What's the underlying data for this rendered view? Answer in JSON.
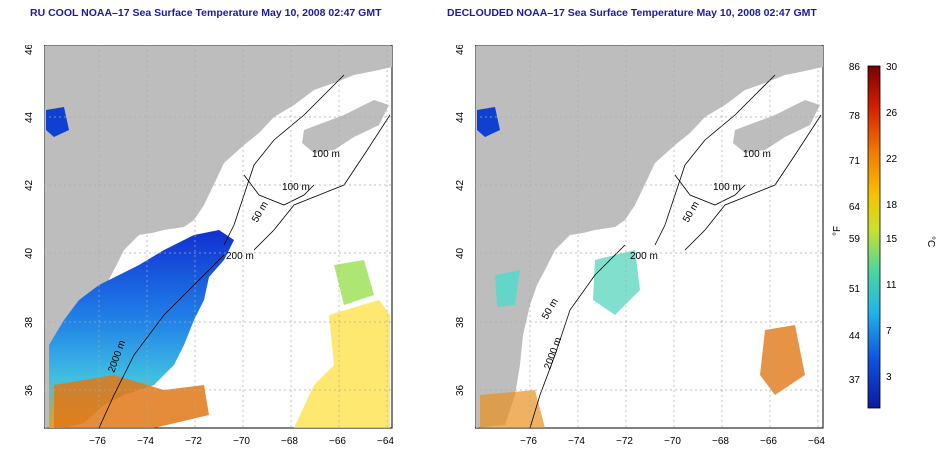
{
  "maps": [
    {
      "title": "RU COOL NOAA–17 Sea Surface Temperature May 10, 2008 02:47 GMT",
      "contour_labels": [
        "100 m",
        "100 m",
        "50 m",
        "200 m",
        "2000 m"
      ]
    },
    {
      "title": "DECLOUDED NOAA–17 Sea Surface Temperature May 10, 2008 02:47 GMT",
      "contour_labels": [
        "100 m",
        "100 m",
        "50 m",
        "200 m",
        "50 m",
        "2000 m"
      ]
    }
  ],
  "axes": {
    "x_ticks": [
      "−76",
      "−74",
      "−72",
      "−70",
      "−68",
      "−66",
      "−64"
    ],
    "y_ticks": [
      "46",
      "44",
      "42",
      "40",
      "38",
      "36"
    ]
  },
  "colorbar": {
    "fahrenheit_ticks": [
      "86",
      "78",
      "71",
      "64",
      "59",
      "51",
      "44",
      "37"
    ],
    "celsius_ticks": [
      "30",
      "26",
      "22",
      "18",
      "15",
      "11",
      "7",
      "3"
    ],
    "left_unit": "°F",
    "right_unit": "°C",
    "colors": [
      "#7a0000",
      "#d22000",
      "#f07a00",
      "#f5c400",
      "#c8e030",
      "#4cd6a0",
      "#20b4e8",
      "#1050e0",
      "#0a1aa0"
    ]
  },
  "legend_colors": {
    "land": "#bdbdbd",
    "water_nodata": "#ffffff",
    "contour": "#000000",
    "grid": "#aaaaaa"
  }
}
